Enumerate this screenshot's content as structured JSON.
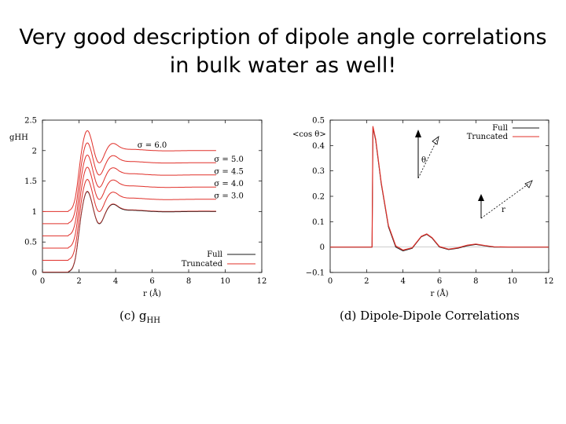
{
  "slide": {
    "title_line1": "Very good description of dipole angle correlations",
    "title_line2": "in bulk water as well!"
  },
  "chart_data": [
    {
      "type": "line",
      "panel_caption": "(c) g",
      "panel_caption_sub": "HH",
      "ylabel": "gHH",
      "xlabel": "r (Å)",
      "xlim": [
        0,
        12
      ],
      "ylim": [
        0,
        2.5
      ],
      "xticks": [
        0,
        2,
        4,
        6,
        8,
        10,
        12
      ],
      "yticks": [
        0,
        0.5,
        1,
        1.5,
        2,
        2.5
      ],
      "ytick_labels": [
        "0",
        "0.5",
        "1",
        "1.5",
        "2",
        "2.5"
      ],
      "legend": {
        "position": "bottom-right",
        "entries": [
          "Full",
          "Truncated"
        ]
      },
      "colors": {
        "full": "#1a1a1a",
        "truncated": "#e0302a"
      },
      "annotations": [
        {
          "text": "σ = 6.0",
          "x": 6.0,
          "y": 2.05
        },
        {
          "text": "σ = 5.0",
          "x": 10.2,
          "y": 1.82
        },
        {
          "text": "σ = 4.5",
          "x": 10.2,
          "y": 1.62
        },
        {
          "text": "σ = 4.0",
          "x": 10.2,
          "y": 1.42
        },
        {
          "text": "σ = 3.0",
          "x": 10.2,
          "y": 1.22
        }
      ],
      "offset_curves": [
        {
          "sigma": "6.0",
          "offset": 1.0
        },
        {
          "sigma": "5.0",
          "offset": 0.8
        },
        {
          "sigma": "4.5",
          "offset": 0.6
        },
        {
          "sigma": "4.0",
          "offset": 0.4
        },
        {
          "sigma": "3.0",
          "offset": 0.2
        },
        {
          "sigma": "full",
          "offset": 0.0
        }
      ]
    },
    {
      "type": "line",
      "panel_caption": "(d) Dipole-Dipole Correlations",
      "ylabel": "<cos θ>",
      "xlabel": "r (Å)",
      "xlim": [
        0,
        12
      ],
      "ylim": [
        -0.1,
        0.5
      ],
      "xticks": [
        0,
        2,
        4,
        6,
        8,
        10,
        12
      ],
      "yticks": [
        -0.1,
        0,
        0.1,
        0.2,
        0.3,
        0.4,
        0.5
      ],
      "ytick_labels": [
        "−0.1",
        "0",
        "0.1",
        "0.2",
        "0.3",
        "0.4",
        "0.5"
      ],
      "legend": {
        "position": "top-right",
        "entries": [
          "Full",
          "Truncated"
        ]
      },
      "colors": {
        "full": "#1a1a1a",
        "truncated": "#e0302a"
      },
      "inset_labels": [
        "θ",
        "r"
      ],
      "series": [
        {
          "name": "Full",
          "x": [
            0,
            2.3,
            2.35,
            2.5,
            2.8,
            3.2,
            3.6,
            4.0,
            4.5,
            5.0,
            5.3,
            5.6,
            6.0,
            6.5,
            7.0,
            7.5,
            8.0,
            8.5,
            9.0,
            10,
            11,
            12
          ],
          "y": [
            0,
            0,
            0.47,
            0.42,
            0.25,
            0.08,
            0.0,
            -0.015,
            -0.005,
            0.04,
            0.05,
            0.035,
            0.0,
            -0.01,
            -0.005,
            0.005,
            0.01,
            0.005,
            0.0,
            0,
            0,
            0
          ]
        },
        {
          "name": "Truncated",
          "x": [
            0,
            2.3,
            2.35,
            2.5,
            2.8,
            3.2,
            3.6,
            4.0,
            4.5,
            5.0,
            5.3,
            5.6,
            6.0,
            6.5,
            7.0,
            7.5,
            8.0,
            8.5,
            9.0,
            10,
            11,
            12
          ],
          "y": [
            0,
            0,
            0.475,
            0.425,
            0.255,
            0.085,
            0.005,
            -0.012,
            -0.003,
            0.042,
            0.052,
            0.037,
            0.002,
            -0.008,
            -0.003,
            0.007,
            0.012,
            0.006,
            0.001,
            0,
            0,
            0
          ]
        }
      ]
    }
  ]
}
